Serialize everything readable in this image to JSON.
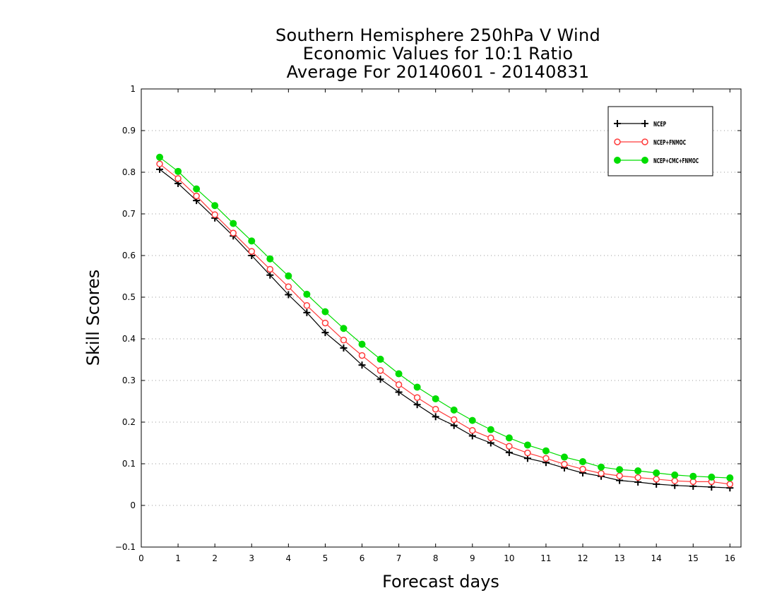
{
  "chart_data": {
    "type": "line",
    "title_lines": [
      "Southern Hemisphere 250hPa V Wind",
      "Economic Values for 10:1 Ratio",
      "Average For 20140601 - 20140831"
    ],
    "xlabel": "Forecast days",
    "ylabel": "Skill Scores",
    "xlim": [
      0,
      16.3
    ],
    "ylim": [
      -0.1,
      1.0
    ],
    "x_ticks": [
      0,
      1,
      2,
      3,
      4,
      5,
      6,
      7,
      8,
      9,
      10,
      11,
      12,
      13,
      14,
      15,
      16
    ],
    "y_ticks": [
      -0.1,
      0,
      0.1,
      0.2,
      0.3,
      0.4,
      0.5,
      0.6,
      0.7,
      0.8,
      0.9,
      1
    ],
    "grid": true,
    "legend_position": "top-right",
    "x": [
      0.5,
      1,
      1.5,
      2,
      2.5,
      3,
      3.5,
      4,
      4.5,
      5,
      5.5,
      6,
      6.5,
      7,
      7.5,
      8,
      8.5,
      9,
      9.5,
      10,
      10.5,
      11,
      11.5,
      12,
      12.5,
      13,
      13.5,
      14,
      14.5,
      15,
      15.5,
      16
    ],
    "series": [
      {
        "name": "NCEP",
        "color": "#000000",
        "marker": "plus",
        "values": [
          0.807,
          0.773,
          0.732,
          0.69,
          0.647,
          0.6,
          0.553,
          0.506,
          0.463,
          0.415,
          0.378,
          0.337,
          0.303,
          0.272,
          0.242,
          0.213,
          0.192,
          0.167,
          0.15,
          0.127,
          0.113,
          0.103,
          0.09,
          0.078,
          0.07,
          0.06,
          0.056,
          0.051,
          0.048,
          0.046,
          0.044,
          0.042
        ]
      },
      {
        "name": "NCEP+FNMOC",
        "color": "#ff3a3a",
        "marker": "open-circle",
        "values": [
          0.82,
          0.785,
          0.743,
          0.698,
          0.654,
          0.61,
          0.567,
          0.525,
          0.48,
          0.438,
          0.397,
          0.36,
          0.324,
          0.29,
          0.259,
          0.231,
          0.206,
          0.18,
          0.162,
          0.142,
          0.126,
          0.113,
          0.099,
          0.087,
          0.077,
          0.071,
          0.067,
          0.063,
          0.059,
          0.057,
          0.057,
          0.051
        ]
      },
      {
        "name": "NCEP+CMC+FNMOC",
        "color": "#00dd00",
        "marker": "filled-circle",
        "values": [
          0.836,
          0.802,
          0.76,
          0.72,
          0.677,
          0.635,
          0.592,
          0.551,
          0.507,
          0.465,
          0.425,
          0.387,
          0.351,
          0.316,
          0.284,
          0.256,
          0.229,
          0.204,
          0.182,
          0.162,
          0.145,
          0.131,
          0.116,
          0.105,
          0.092,
          0.086,
          0.083,
          0.078,
          0.073,
          0.07,
          0.068,
          0.066
        ]
      }
    ]
  }
}
